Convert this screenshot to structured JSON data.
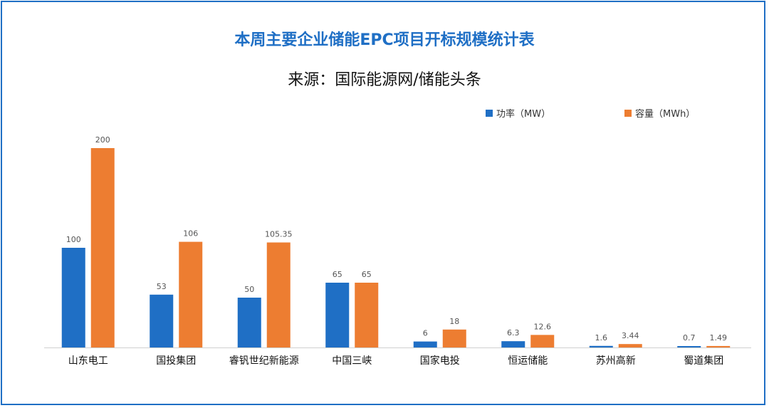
{
  "chart_data": {
    "type": "bar",
    "title": "本周主要企业储能EPC项目开标规模统计表",
    "subtitle": "来源：国际能源网/储能头条",
    "categories": [
      "山东电工",
      "国投集团",
      "睿钒世纪新能源",
      "中国三峡",
      "国家电投",
      "恒运储能",
      "苏州高新",
      "蜀道集团"
    ],
    "series": [
      {
        "name": "功率（MW）",
        "color": "#1f6fc5",
        "values": [
          100,
          53,
          50,
          65,
          6,
          6.3,
          1.6,
          0.7
        ]
      },
      {
        "name": "容量（MWh）",
        "color": "#ed7d31",
        "values": [
          200,
          106,
          105.35,
          65,
          18,
          12.6,
          3.44,
          1.49
        ]
      }
    ],
    "legend_position": "top-right",
    "grid": false,
    "ylim": [
      0,
      200
    ]
  }
}
